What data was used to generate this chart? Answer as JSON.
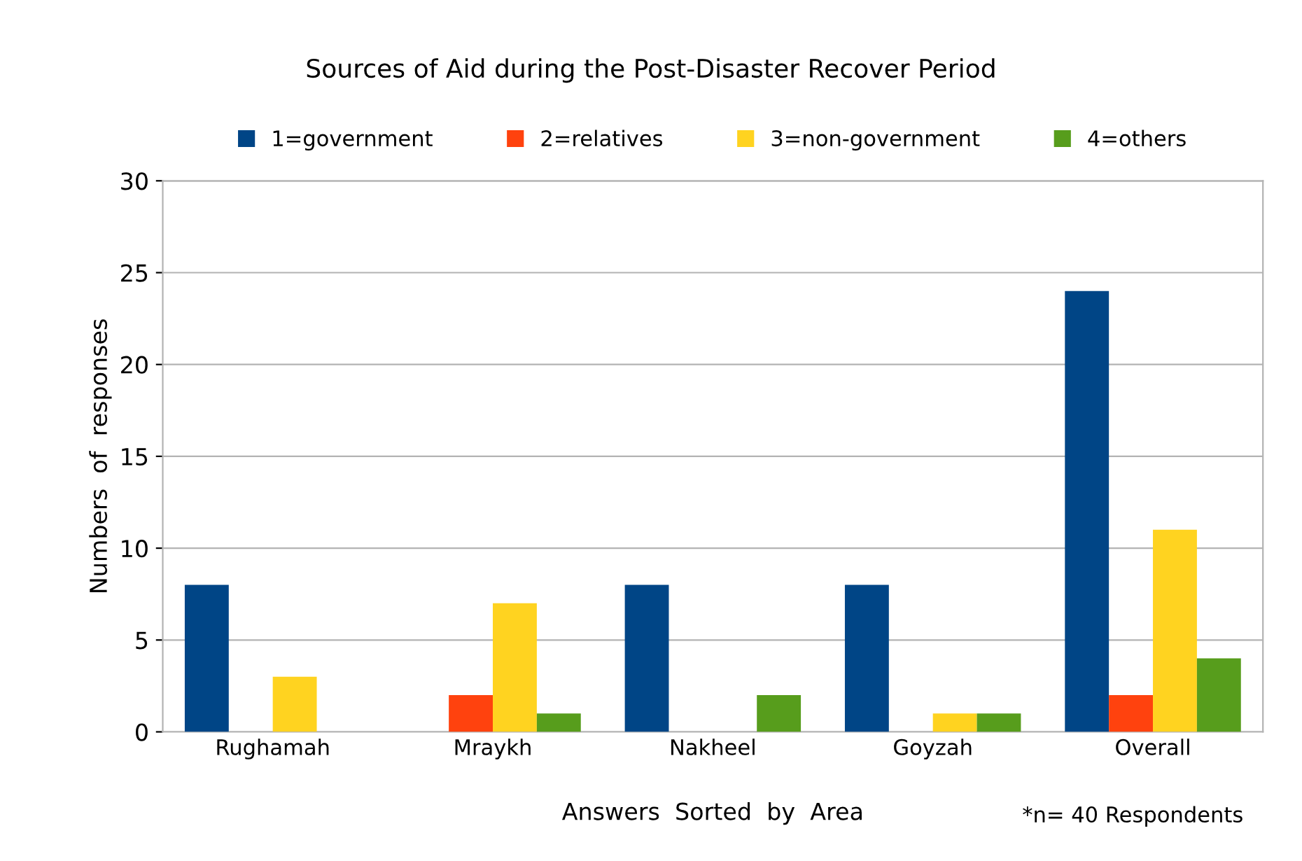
{
  "chart_data": {
    "type": "bar",
    "title": "Sources of Aid during the Post-Disaster Recover Period",
    "xlabel": "Answers  Sorted  by  Area",
    "ylabel": "Numbers  of  responses",
    "categories": [
      "Rughamah",
      "Mraykh",
      "Nakheel",
      "Goyzah",
      "Overall"
    ],
    "series": [
      {
        "name": "1=government",
        "color": "#004586",
        "values": [
          8,
          0,
          8,
          8,
          24
        ]
      },
      {
        "name": "2=relatives",
        "color": "#ff420e",
        "values": [
          0,
          2,
          0,
          0,
          2
        ]
      },
      {
        "name": "3=non-government",
        "color": "#ffd320",
        "values": [
          3,
          7,
          0,
          1,
          11
        ]
      },
      {
        "name": "4=others",
        "color": "#579d1c",
        "values": [
          0,
          1,
          2,
          1,
          4
        ]
      }
    ],
    "ylim": [
      0,
      30
    ],
    "yticks": [
      0,
      5,
      10,
      15,
      20,
      25,
      30
    ],
    "grid": "y",
    "legend": "top",
    "annotations": [
      "*n= 40 Respondents"
    ]
  }
}
